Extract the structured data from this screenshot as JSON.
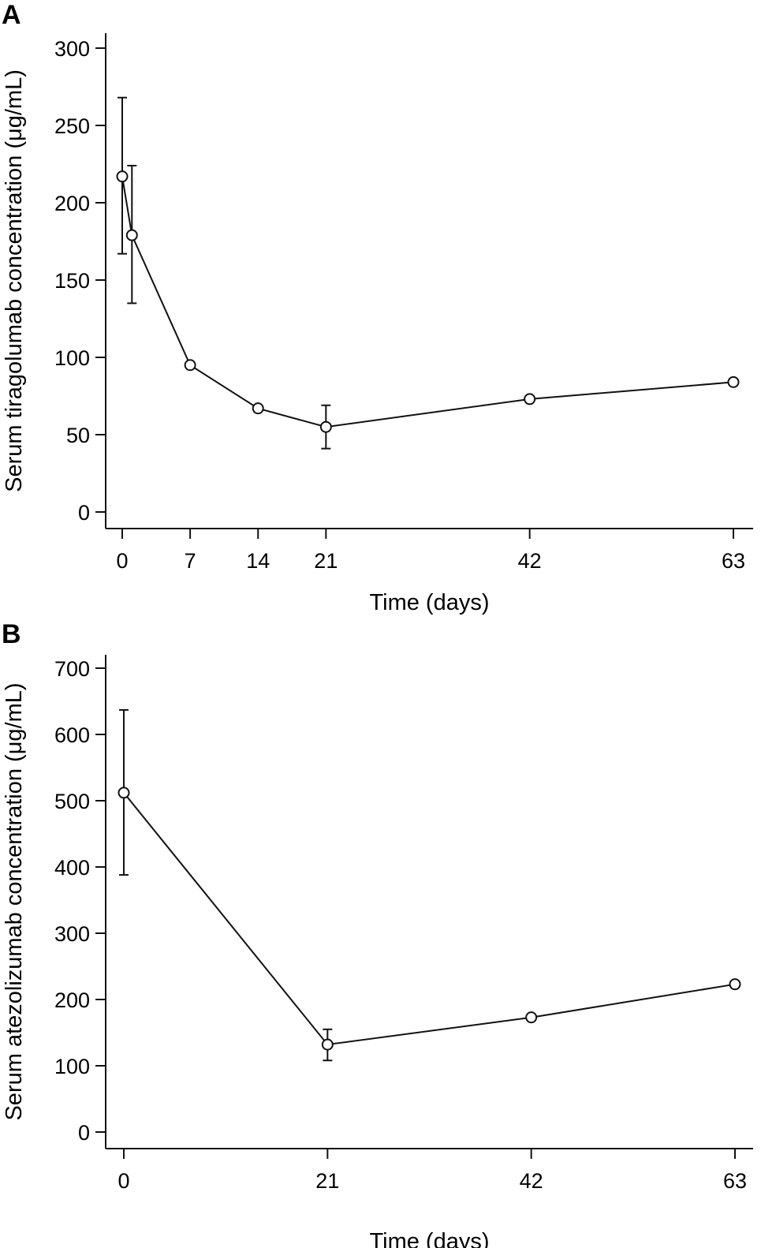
{
  "chart_data": [
    {
      "panel": "A",
      "type": "line",
      "title": "",
      "xlabel": "Time (days)",
      "ylabel": "Serum tiragolumab concentration (μg/mL)",
      "xlim": [
        -1,
        64
      ],
      "ylim": [
        0,
        300
      ],
      "xticks": [
        0,
        7,
        14,
        21,
        42,
        63
      ],
      "yticks": [
        0,
        50,
        100,
        150,
        200,
        250,
        300
      ],
      "grid": false,
      "series": [
        {
          "name": "tiragolumab",
          "marker": "open-circle",
          "x": [
            0,
            1,
            7,
            14,
            21,
            42,
            63
          ],
          "y": [
            217,
            179,
            95,
            67,
            55,
            73,
            84
          ],
          "err_low": [
            167,
            135,
            null,
            null,
            41,
            null,
            null
          ],
          "err_high": [
            268,
            224,
            null,
            null,
            69,
            null,
            null
          ]
        }
      ]
    },
    {
      "panel": "B",
      "type": "line",
      "title": "",
      "xlabel": "Time (days)",
      "ylabel": "Serum atezolizumab concentration (μg/mL)",
      "xlim": [
        -1,
        64
      ],
      "ylim": [
        0,
        700
      ],
      "xticks": [
        0,
        21,
        42,
        63
      ],
      "yticks": [
        0,
        100,
        200,
        300,
        400,
        500,
        600,
        700
      ],
      "grid": false,
      "series": [
        {
          "name": "atezolizumab",
          "marker": "open-circle",
          "x": [
            0,
            21,
            42,
            63
          ],
          "y": [
            512,
            132,
            173,
            223
          ],
          "err_low": [
            388,
            108,
            null,
            null
          ],
          "err_high": [
            637,
            155,
            null,
            null
          ]
        }
      ]
    }
  ]
}
